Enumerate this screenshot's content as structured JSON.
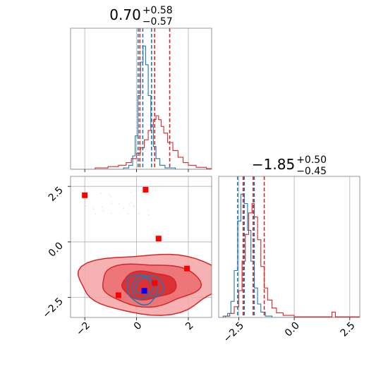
{
  "chart_data": {
    "type": "corner",
    "params": [
      {
        "title_value": "0.70",
        "title_plus": "+0.58",
        "title_minus": "−0.57",
        "range": [
          -2.55,
          2.9
        ],
        "ticks": [
          -2,
          0,
          2
        ],
        "tick_labels": [
          "−2",
          "0",
          "2"
        ],
        "quantiles_red": [
          0.13,
          0.7,
          1.28
        ],
        "quantiles_blue": [
          0.06,
          0.24,
          0.58
        ]
      },
      {
        "title_value": "−1.85",
        "title_plus": "+0.50",
        "title_minus": "−0.45",
        "range": [
          -3.4,
          2.95
        ],
        "ticks": [
          -2.5,
          0.0,
          2.5
        ],
        "tick_labels": [
          "−2.5",
          "0.0",
          "2.5"
        ],
        "quantiles_red": [
          -2.3,
          -1.85,
          -1.35
        ],
        "quantiles_blue": [
          -2.55,
          -2.25,
          -1.8
        ]
      }
    ],
    "hist_red": {
      "param0": [
        [
          -2.55,
          0
        ],
        [
          -1.6,
          0.01
        ],
        [
          -1.1,
          0.02
        ],
        [
          -0.7,
          0.03
        ],
        [
          -0.4,
          0.05
        ],
        [
          -0.2,
          0.08
        ],
        [
          0.0,
          0.12
        ],
        [
          0.15,
          0.16
        ],
        [
          0.3,
          0.22
        ],
        [
          0.45,
          0.29
        ],
        [
          0.55,
          0.33
        ],
        [
          0.65,
          0.37
        ],
        [
          0.75,
          0.4
        ],
        [
          0.85,
          0.37
        ],
        [
          0.95,
          0.32
        ],
        [
          1.05,
          0.27
        ],
        [
          1.2,
          0.2
        ],
        [
          1.4,
          0.14
        ],
        [
          1.6,
          0.09
        ],
        [
          1.8,
          0.05
        ],
        [
          2.0,
          0.03
        ],
        [
          2.3,
          0.015
        ],
        [
          2.7,
          0.005
        ],
        [
          2.9,
          0
        ]
      ],
      "param1": [
        [
          -3.4,
          0
        ],
        [
          -3.1,
          0.01
        ],
        [
          -2.9,
          0.03
        ],
        [
          -2.7,
          0.08
        ],
        [
          -2.5,
          0.2
        ],
        [
          -2.35,
          0.42
        ],
        [
          -2.2,
          0.62
        ],
        [
          -2.05,
          0.78
        ],
        [
          -1.9,
          0.85
        ],
        [
          -1.8,
          0.75
        ],
        [
          -1.65,
          0.58
        ],
        [
          -1.5,
          0.38
        ],
        [
          -1.35,
          0.22
        ],
        [
          -1.2,
          0.13
        ],
        [
          -1.0,
          0.07
        ],
        [
          -0.8,
          0.035
        ],
        [
          -0.5,
          0.015
        ],
        [
          0.0,
          0.005
        ],
        [
          1.0,
          0.005
        ],
        [
          1.7,
          0.04
        ],
        [
          1.85,
          0.005
        ],
        [
          2.95,
          0
        ]
      ]
    },
    "hist_blue": {
      "param0": [
        [
          -2.55,
          0
        ],
        [
          -0.8,
          0.0
        ],
        [
          -0.5,
          0.01
        ],
        [
          -0.3,
          0.03
        ],
        [
          -0.15,
          0.1
        ],
        [
          -0.05,
          0.25
        ],
        [
          0.05,
          0.55
        ],
        [
          0.15,
          0.8
        ],
        [
          0.25,
          0.92
        ],
        [
          0.35,
          0.78
        ],
        [
          0.45,
          0.55
        ],
        [
          0.55,
          0.32
        ],
        [
          0.65,
          0.17
        ],
        [
          0.75,
          0.08
        ],
        [
          0.9,
          0.03
        ],
        [
          1.1,
          0.01
        ],
        [
          1.5,
          0.0
        ],
        [
          2.9,
          0
        ]
      ],
      "param1": [
        [
          -3.4,
          0
        ],
        [
          -3.2,
          0.01
        ],
        [
          -3.0,
          0.03
        ],
        [
          -2.85,
          0.12
        ],
        [
          -2.7,
          0.35
        ],
        [
          -2.55,
          0.72
        ],
        [
          -2.4,
          0.92
        ],
        [
          -2.25,
          0.85
        ],
        [
          -2.1,
          0.65
        ],
        [
          -1.95,
          0.42
        ],
        [
          -1.8,
          0.22
        ],
        [
          -1.65,
          0.1
        ],
        [
          -1.5,
          0.04
        ],
        [
          -1.3,
          0.01
        ],
        [
          -1.0,
          0
        ],
        [
          2.95,
          0
        ]
      ]
    },
    "markers_red": [
      {
        "x": -2.0,
        "y": 2.1
      },
      {
        "x": 0.35,
        "y": 2.35
      },
      {
        "x": 0.85,
        "y": 0.15
      },
      {
        "x": 1.95,
        "y": -1.2
      },
      {
        "x": 0.7,
        "y": -1.85
      },
      {
        "x": -0.7,
        "y": -2.4
      }
    ],
    "marker_blue": {
      "x": 0.3,
      "y": -2.2
    },
    "contours_red": [
      {
        "cx": 0.55,
        "cy": -1.85,
        "rx": 2.8,
        "ry": 1.35,
        "level": 0.3
      },
      {
        "cx": 0.5,
        "cy": -1.9,
        "rx": 1.9,
        "ry": 0.95,
        "level": 0.6
      },
      {
        "cx": 0.45,
        "cy": -1.95,
        "rx": 1.05,
        "ry": 0.62,
        "level": 0.9
      }
    ],
    "contours_blue": [
      {
        "cx": 0.3,
        "cy": -2.1,
        "rx": 0.7,
        "ry": 0.65
      },
      {
        "cx": 0.3,
        "cy": -2.05,
        "rx": 0.5,
        "ry": 0.5
      },
      {
        "cx": 0.3,
        "cy": -2.0,
        "rx": 0.33,
        "ry": 0.35
      }
    ],
    "colors": {
      "red": "#d62728",
      "blue": "#1f77b4",
      "marker_red": "#ff0000",
      "marker_blue": "#0000ff"
    },
    "grid": true
  }
}
